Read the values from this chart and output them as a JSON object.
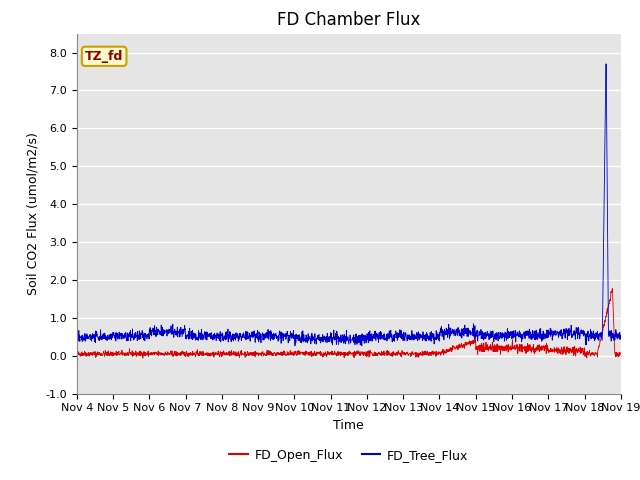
{
  "title": "FD Chamber Flux",
  "xlabel": "Time",
  "ylabel": "Soil CO2 Flux (umol/m2/s)",
  "ylim": [
    -1.0,
    8.5
  ],
  "yticks": [
    -1.0,
    0.0,
    1.0,
    2.0,
    3.0,
    4.0,
    5.0,
    6.0,
    7.0,
    8.0
  ],
  "ytick_labels": [
    "-1.0",
    "0.0",
    "1.0",
    "2.0",
    "3.0",
    "4.0",
    "5.0",
    "6.0",
    "7.0",
    "8.0"
  ],
  "xtick_labels": [
    "Nov 4",
    "Nov 5",
    "Nov 6",
    "Nov 7",
    "Nov 8",
    "Nov 9",
    "Nov 10",
    "Nov 11",
    "Nov 12",
    "Nov 13",
    "Nov 14",
    "Nov 15",
    "Nov 16",
    "Nov 17",
    "Nov 18",
    "Nov 19"
  ],
  "annotation_text": "TZ_fd",
  "annotation_color": "#8B0000",
  "annotation_bg": "#FFFACD",
  "annotation_border": "#C8A000",
  "line_red_color": "#DD0000",
  "line_blue_color": "#0000CC",
  "background_color": "#E5E5E5",
  "grid_color": "#FFFFFF",
  "legend_red_label": "FD_Open_Flux",
  "legend_blue_label": "FD_Tree_Flux",
  "title_fontsize": 12,
  "axis_label_fontsize": 9,
  "tick_fontsize": 8,
  "legend_fontsize": 9
}
